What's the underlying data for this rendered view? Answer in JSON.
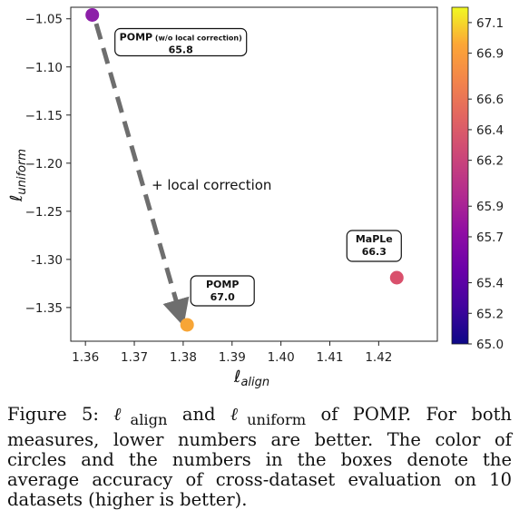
{
  "chart_data": {
    "type": "scatter",
    "xlabel": "ℓ",
    "xlabel_sub": "align",
    "ylabel": "ℓ",
    "ylabel_sub": "uniform",
    "xlim": [
      1.357,
      1.432
    ],
    "ylim": [
      -1.385,
      -1.038
    ],
    "xticks": [
      "1.36",
      "1.37",
      "1.38",
      "1.39",
      "1.40",
      "1.41",
      "1.42"
    ],
    "xtick_values": [
      1.36,
      1.37,
      1.38,
      1.39,
      1.4,
      1.41,
      1.42
    ],
    "yticks": [
      "−1.05",
      "−1.10",
      "−1.15",
      "−1.20",
      "−1.25",
      "-1.30",
      "−1.35"
    ],
    "ytick_values": [
      -1.05,
      -1.1,
      -1.15,
      -1.2,
      -1.25,
      -1.3,
      -1.35
    ],
    "grid": false,
    "colormap": "plasma",
    "colorbar": {
      "range": [
        65.0,
        67.2
      ],
      "ticks": [
        "65.0",
        "65.2",
        "65.4",
        "65.7",
        "65.9",
        "66.2",
        "66.4",
        "66.6",
        "66.9",
        "67.1"
      ],
      "tick_values": [
        65.0,
        65.2,
        65.4,
        65.7,
        65.9,
        66.2,
        66.4,
        66.6,
        66.9,
        67.1
      ]
    },
    "points": [
      {
        "x": 1.3614,
        "y": -1.046,
        "value": 65.8,
        "color": "#8c1fa8",
        "label_main": "POMP",
        "label_small": "(w/o local correction)",
        "value_text": "65.8"
      },
      {
        "x": 1.3808,
        "y": -1.368,
        "value": 67.0,
        "color": "#f7a536",
        "label_main": "POMP",
        "label_small": "",
        "value_text": "67.0"
      },
      {
        "x": 1.4237,
        "y": -1.319,
        "value": 66.3,
        "color": "#d9506c",
        "label_main": "MaPLe",
        "label_small": "",
        "value_text": "66.3"
      }
    ],
    "arrow": {
      "from": [
        1.3622,
        -1.055
      ],
      "to": [
        1.3793,
        -1.356
      ],
      "color": "#6e6e6e"
    },
    "annotation": "+ local correction"
  },
  "caption": {
    "figure_label": "Figure 5: ",
    "l1": "ℓ",
    "l1_sub": "align",
    "and": " and ",
    "l2": "ℓ",
    "l2_sub": "uniform",
    "text": " of POMP. For both measures, lower numbers are better. The color of circles and the numbers in the boxes denote the average accuracy of cross-dataset evaluation on 10 datasets (higher is better)."
  }
}
